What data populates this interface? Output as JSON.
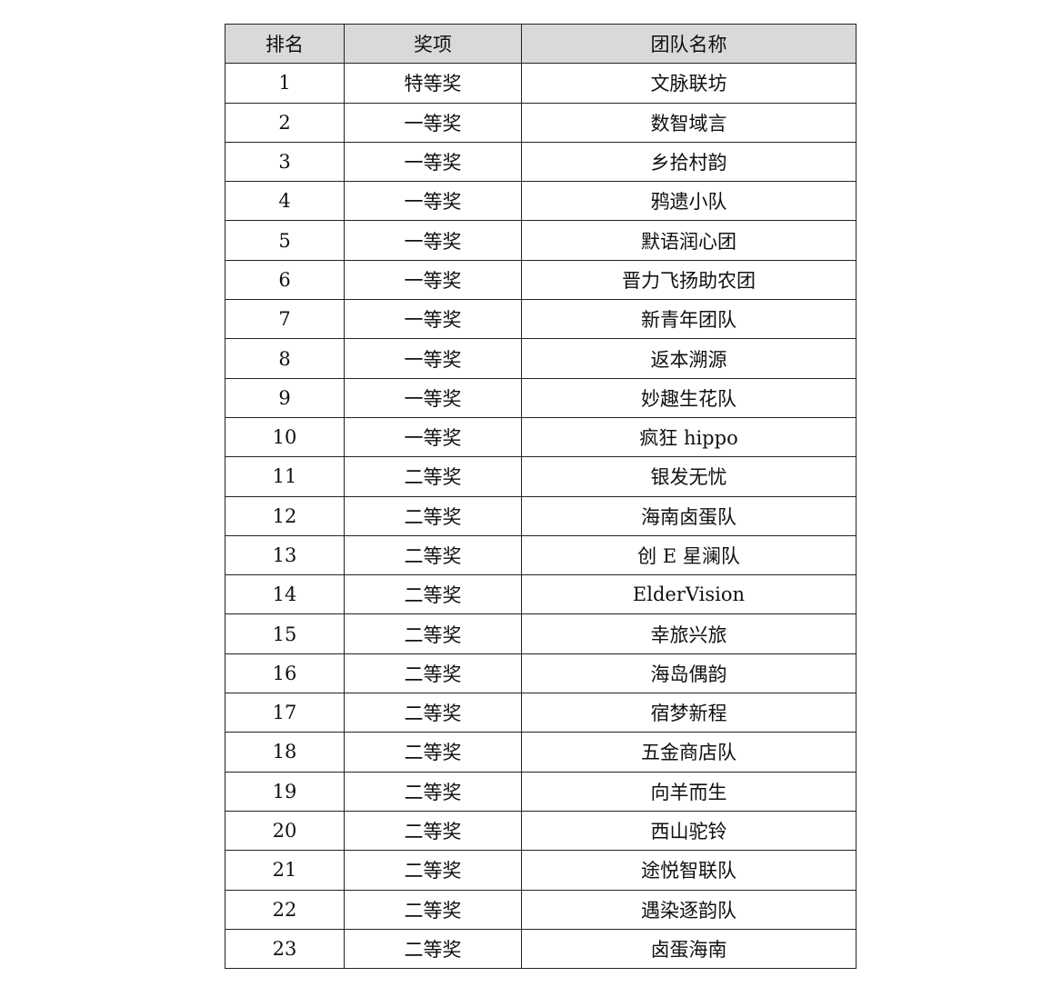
{
  "table": {
    "headers": [
      "排名",
      "奖项",
      "团队名称"
    ],
    "rows": [
      [
        "1",
        "特等奖",
        "文脉联坊"
      ],
      [
        "2",
        "一等奖",
        "数智域言"
      ],
      [
        "3",
        "一等奖",
        "乡拾村韵"
      ],
      [
        "4",
        "一等奖",
        "鸦遗小队"
      ],
      [
        "5",
        "一等奖",
        "默语润心团"
      ],
      [
        "6",
        "一等奖",
        "晋力飞扬助农团"
      ],
      [
        "7",
        "一等奖",
        "新青年团队"
      ],
      [
        "8",
        "一等奖",
        "返本溯源"
      ],
      [
        "9",
        "一等奖",
        "妙趣生花队"
      ],
      [
        "10",
        "一等奖",
        "疯狂 hippo"
      ],
      [
        "11",
        "二等奖",
        "银发无忧"
      ],
      [
        "12",
        "二等奖",
        "海南卤蛋队"
      ],
      [
        "13",
        "二等奖",
        "创 E 星澜队"
      ],
      [
        "14",
        "二等奖",
        "ElderVision"
      ],
      [
        "15",
        "二等奖",
        "幸旅兴旅"
      ],
      [
        "16",
        "二等奖",
        "海岛偶韵"
      ],
      [
        "17",
        "二等奖",
        "宿梦新程"
      ],
      [
        "18",
        "二等奖",
        "五金商店队"
      ],
      [
        "19",
        "二等奖",
        "向羊而生"
      ],
      [
        "20",
        "二等奖",
        "西山驼铃"
      ],
      [
        "21",
        "二等奖",
        "途悦智联队"
      ],
      [
        "22",
        "二等奖",
        "遇染逐韵队"
      ],
      [
        "23",
        "二等奖",
        "卤蛋海南"
      ]
    ]
  }
}
